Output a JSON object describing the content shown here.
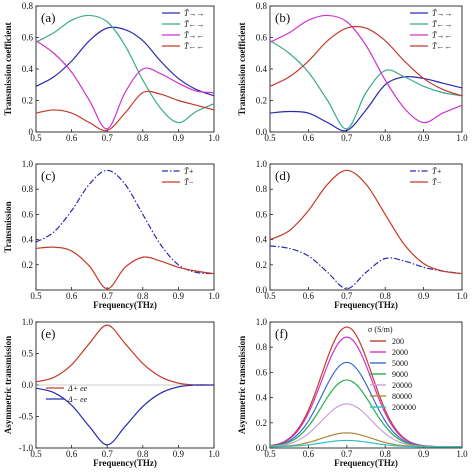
{
  "chart_data": [
    {
      "id": "a",
      "type": "line",
      "panel_label": "(a)",
      "xlabel": "",
      "ylabel": "Transmission coefficient",
      "xlim": [
        0.5,
        1.0
      ],
      "ylim": [
        0,
        0.8
      ],
      "xticks": [
        "0.5",
        "0.6",
        "0.7",
        "0.8",
        "0.9",
        "1.0"
      ],
      "yticks": [
        "0",
        "0.2",
        "0.4",
        "0.6",
        "0.8"
      ],
      "legend_position": "top-right",
      "series": [
        {
          "name": "T̃→→",
          "color": "#2a2ab0",
          "dash": "solid",
          "x": [
            0.5,
            0.55,
            0.6,
            0.65,
            0.7,
            0.75,
            0.8,
            0.85,
            0.9,
            0.95,
            1.0
          ],
          "y": [
            0.29,
            0.35,
            0.45,
            0.58,
            0.66,
            0.65,
            0.58,
            0.45,
            0.34,
            0.27,
            0.23
          ]
        },
        {
          "name": "T̃←→",
          "color": "#3aaa8a",
          "dash": "solid",
          "x": [
            0.5,
            0.55,
            0.6,
            0.65,
            0.7,
            0.75,
            0.8,
            0.85,
            0.9,
            0.95,
            1.0
          ],
          "y": [
            0.57,
            0.63,
            0.71,
            0.74,
            0.7,
            0.55,
            0.33,
            0.15,
            0.06,
            0.13,
            0.18
          ]
        },
        {
          "name": "T̃→←",
          "color": "#cc33cc",
          "dash": "solid",
          "x": [
            0.5,
            0.55,
            0.6,
            0.65,
            0.7,
            0.75,
            0.8,
            0.85,
            0.9,
            0.95,
            1.0
          ],
          "y": [
            0.58,
            0.5,
            0.38,
            0.2,
            0.02,
            0.25,
            0.4,
            0.37,
            0.31,
            0.26,
            0.25
          ]
        },
        {
          "name": "T̃←←",
          "color": "#c43a2a",
          "dash": "solid",
          "x": [
            0.5,
            0.55,
            0.6,
            0.65,
            0.7,
            0.75,
            0.8,
            0.85,
            0.9,
            0.95,
            1.0
          ],
          "y": [
            0.12,
            0.14,
            0.12,
            0.06,
            0.01,
            0.12,
            0.25,
            0.24,
            0.2,
            0.17,
            0.14
          ]
        }
      ]
    },
    {
      "id": "b",
      "type": "line",
      "panel_label": "(b)",
      "xlabel": "",
      "ylabel": "Transmission coefficient",
      "xlim": [
        0.5,
        1.0
      ],
      "ylim": [
        0,
        0.8
      ],
      "xticks": [
        "0.5",
        "0.6",
        "0.7",
        "0.8",
        "0.9",
        "1.0"
      ],
      "yticks": [
        "0.0",
        "0.2",
        "0.4",
        "0.6",
        "0.8"
      ],
      "legend_position": "top-right",
      "series": [
        {
          "name": "T̃→→",
          "color": "#2a2ab0",
          "dash": "solid",
          "x": [
            0.5,
            0.55,
            0.6,
            0.65,
            0.7,
            0.75,
            0.8,
            0.85,
            0.9,
            0.95,
            1.0
          ],
          "y": [
            0.12,
            0.13,
            0.12,
            0.06,
            0.01,
            0.14,
            0.3,
            0.35,
            0.34,
            0.31,
            0.28
          ]
        },
        {
          "name": "T̃←→",
          "color": "#3aaa8a",
          "dash": "solid",
          "x": [
            0.5,
            0.55,
            0.6,
            0.65,
            0.7,
            0.75,
            0.8,
            0.85,
            0.9,
            0.95,
            1.0
          ],
          "y": [
            0.58,
            0.5,
            0.38,
            0.2,
            0.02,
            0.25,
            0.39,
            0.35,
            0.29,
            0.25,
            0.23
          ]
        },
        {
          "name": "T̃→←",
          "color": "#cc33cc",
          "dash": "solid",
          "x": [
            0.5,
            0.55,
            0.6,
            0.65,
            0.7,
            0.75,
            0.8,
            0.85,
            0.9,
            0.95,
            1.0
          ],
          "y": [
            0.57,
            0.63,
            0.71,
            0.74,
            0.7,
            0.55,
            0.33,
            0.15,
            0.06,
            0.12,
            0.17
          ]
        },
        {
          "name": "T̃←←",
          "color": "#c43a2a",
          "dash": "solid",
          "x": [
            0.5,
            0.55,
            0.6,
            0.65,
            0.7,
            0.75,
            0.8,
            0.85,
            0.9,
            0.95,
            1.0
          ],
          "y": [
            0.29,
            0.35,
            0.45,
            0.58,
            0.66,
            0.66,
            0.58,
            0.45,
            0.34,
            0.27,
            0.23
          ]
        }
      ]
    },
    {
      "id": "c",
      "type": "line",
      "panel_label": "(c)",
      "xlabel": "Frequency(THz)",
      "ylabel": "Transmission",
      "xlim": [
        0.5,
        1.0
      ],
      "ylim": [
        0,
        1.0
      ],
      "xticks": [
        "0.5",
        "0.6",
        "0.7",
        "0.8",
        "0.9",
        "1.0"
      ],
      "yticks": [
        "0.2",
        "0.4",
        "0.6",
        "0.8",
        "1.0"
      ],
      "legend_position": "top-right",
      "series": [
        {
          "name": "T̃+",
          "color": "#2a2ab0",
          "dash": "dashdot",
          "x": [
            0.5,
            0.55,
            0.6,
            0.65,
            0.7,
            0.75,
            0.8,
            0.85,
            0.9,
            0.95,
            1.0
          ],
          "y": [
            0.38,
            0.46,
            0.63,
            0.84,
            0.95,
            0.84,
            0.6,
            0.36,
            0.2,
            0.14,
            0.13
          ]
        },
        {
          "name": "T̃−",
          "color": "#c43a2a",
          "dash": "solid",
          "x": [
            0.5,
            0.55,
            0.6,
            0.65,
            0.7,
            0.75,
            0.8,
            0.85,
            0.9,
            0.95,
            1.0
          ],
          "y": [
            0.33,
            0.34,
            0.31,
            0.19,
            0.01,
            0.18,
            0.26,
            0.23,
            0.18,
            0.15,
            0.13
          ]
        }
      ]
    },
    {
      "id": "d",
      "type": "line",
      "panel_label": "(d)",
      "xlabel": "Frequency(THz)",
      "ylabel": "",
      "xlim": [
        0.5,
        1.0
      ],
      "ylim": [
        0,
        1.0
      ],
      "xticks": [
        "0.5",
        "0.6",
        "0.7",
        "0.8",
        "0.9",
        "1.0"
      ],
      "yticks": [
        "0.0",
        "0.2",
        "0.4",
        "0.6",
        "0.8",
        "1.0"
      ],
      "legend_position": "top-right",
      "series": [
        {
          "name": "T̃+",
          "color": "#2a2ab0",
          "dash": "dashdot",
          "x": [
            0.5,
            0.55,
            0.6,
            0.65,
            0.7,
            0.75,
            0.8,
            0.85,
            0.9,
            0.95,
            1.0
          ],
          "y": [
            0.35,
            0.33,
            0.27,
            0.14,
            0.01,
            0.14,
            0.25,
            0.23,
            0.18,
            0.15,
            0.13
          ]
        },
        {
          "name": "T̃−",
          "color": "#c43a2a",
          "dash": "solid",
          "x": [
            0.5,
            0.55,
            0.6,
            0.65,
            0.7,
            0.75,
            0.8,
            0.85,
            0.9,
            0.95,
            1.0
          ],
          "y": [
            0.4,
            0.47,
            0.63,
            0.84,
            0.95,
            0.84,
            0.6,
            0.36,
            0.21,
            0.15,
            0.13
          ]
        }
      ]
    },
    {
      "id": "e",
      "type": "line",
      "panel_label": "(e)",
      "xlabel": "Frequency(THz)",
      "ylabel": "Asymmetric transmission",
      "xlim": [
        0.5,
        1.0
      ],
      "ylim": [
        -1.0,
        1.0
      ],
      "xticks": [
        "0.5",
        "0.6",
        "0.7",
        "0.8",
        "0.9",
        "1.0"
      ],
      "yticks": [
        "-1.0",
        "-0.5",
        "0.0",
        "0.5",
        "1.0"
      ],
      "legend_position": "center-left",
      "series": [
        {
          "name": "Δ+ ee",
          "color": "#c43a2a",
          "dash": "solid",
          "x": [
            0.5,
            0.55,
            0.6,
            0.65,
            0.7,
            0.75,
            0.8,
            0.85,
            0.9,
            0.95,
            1.0
          ],
          "y": [
            0.05,
            0.12,
            0.32,
            0.66,
            0.95,
            0.66,
            0.34,
            0.13,
            0.03,
            0.0,
            0.0
          ]
        },
        {
          "name": "Δ− ee",
          "color": "#2a2ab0",
          "dash": "solid",
          "x": [
            0.5,
            0.55,
            0.6,
            0.65,
            0.7,
            0.75,
            0.8,
            0.85,
            0.9,
            0.95,
            1.0
          ],
          "y": [
            -0.05,
            -0.12,
            -0.32,
            -0.66,
            -0.95,
            -0.66,
            -0.34,
            -0.13,
            -0.03,
            0.0,
            0.0
          ]
        }
      ]
    },
    {
      "id": "f",
      "type": "line",
      "panel_label": "(f)",
      "xlabel": "Frequency(THz)",
      "ylabel": "Asymmetric transmission",
      "xlim": [
        0.5,
        1.0
      ],
      "ylim": [
        0,
        1.0
      ],
      "xticks": [
        "0.5",
        "0.6",
        "0.7",
        "0.8",
        "0.9",
        "1.0"
      ],
      "yticks": [
        "0.0",
        "0.2",
        "0.4",
        "0.6",
        "0.8",
        "1.0"
      ],
      "legend_title": "σ (S/m)",
      "legend_position": "top-right",
      "peaks": [
        0.95,
        0.87,
        0.67,
        0.53,
        0.34,
        0.11,
        0.05
      ],
      "series": [
        {
          "name": "200",
          "color": "#c43a2a"
        },
        {
          "name": "2000",
          "color": "#cc33cc"
        },
        {
          "name": "5000",
          "color": "#3a6ec8"
        },
        {
          "name": "9000",
          "color": "#22b24a"
        },
        {
          "name": "20000",
          "color": "#c8a0d8"
        },
        {
          "name": "80000",
          "color": "#b08a3a"
        },
        {
          "name": "200000",
          "color": "#30c0c0"
        }
      ]
    }
  ]
}
